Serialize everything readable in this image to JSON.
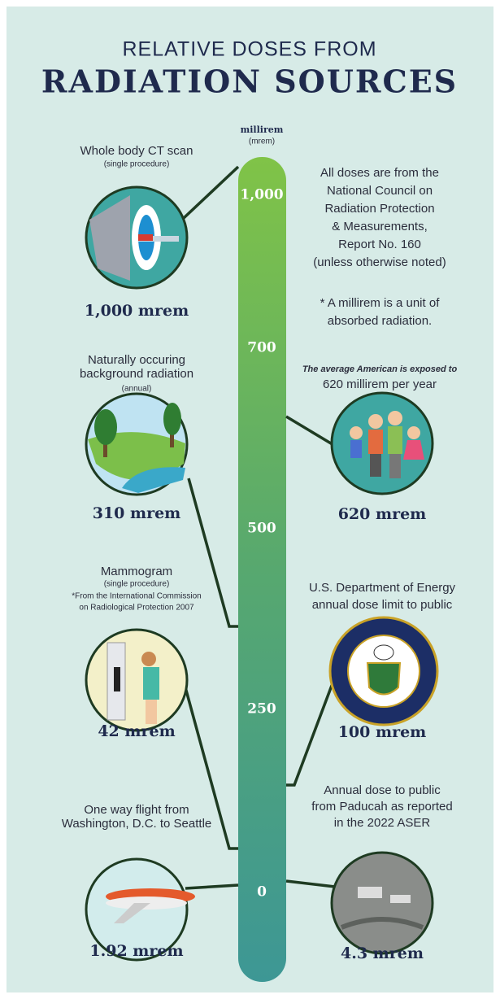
{
  "header": {
    "title_top": "RELATIVE DOSES FROM",
    "title_main": "RADIATION SOURCES"
  },
  "scale": {
    "unit": "millirem",
    "unit_abbr": "(mrem)",
    "ticks": [
      "1,000",
      "700",
      "500",
      "250",
      "0"
    ]
  },
  "notes": {
    "source": [
      "All doses are from the",
      "National Council on",
      "Radiation Protection",
      "& Measurements,",
      "Report No. 160",
      "(unless otherwise noted)"
    ],
    "definition": [
      "* A millirem is a unit of",
      "absorbed radiation."
    ]
  },
  "sources": [
    {
      "label": [
        "Whole body CT scan"
      ],
      "note": [
        "(single procedure)"
      ],
      "dose": "1,000 mrem"
    },
    {
      "label": [
        "Naturally occuring",
        "background radiation"
      ],
      "note": [
        "(annual)"
      ],
      "dose": "310 mrem"
    },
    {
      "intro": "The average American is exposed to",
      "label": [
        "620 millirem per year"
      ],
      "dose": "620 mrem"
    },
    {
      "label": [
        "Mammogram"
      ],
      "note": [
        "(single procedure)",
        "*From the International Commission",
        "on Radiological Protection 2007"
      ],
      "dose": "42 mrem"
    },
    {
      "label": [
        "U.S. Department of Energy",
        "annual dose limit to public"
      ],
      "dose": "100 mrem"
    },
    {
      "label": [
        "One way flight from",
        "Washington, D.C. to Seattle"
      ],
      "dose": "1.92 mrem"
    },
    {
      "label": [
        "Annual dose to public",
        "from Paducah as reported",
        "in the 2022 ASER"
      ],
      "dose": "4.3 mrem"
    }
  ]
}
